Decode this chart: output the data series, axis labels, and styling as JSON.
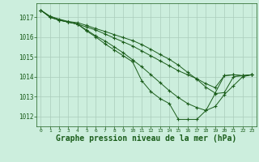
{
  "background_color": "#cceedd",
  "grid_color": "#aaccbb",
  "line_color": "#1a5c1a",
  "marker_color": "#1a5c1a",
  "xlabel": "Graphe pression niveau de la mer (hPa)",
  "xlabel_fontsize": 7,
  "ylim": [
    1011.5,
    1017.7
  ],
  "xlim": [
    -0.5,
    23.5
  ],
  "yticks": [
    1012,
    1013,
    1014,
    1015,
    1016,
    1017
  ],
  "xticks": [
    0,
    1,
    2,
    3,
    4,
    5,
    6,
    7,
    8,
    9,
    10,
    11,
    12,
    13,
    14,
    15,
    16,
    17,
    18,
    19,
    20,
    21,
    22,
    23
  ],
  "lines": [
    [
      1017.35,
      1017.0,
      1016.85,
      1016.75,
      1016.65,
      1016.5,
      1016.35,
      1016.15,
      1015.95,
      1015.75,
      1015.55,
      1015.3,
      1015.05,
      1014.8,
      1014.55,
      1014.3,
      1014.1,
      1013.9,
      1013.65,
      1013.45,
      1014.05,
      1014.1,
      1014.05,
      1014.1
    ],
    [
      1017.35,
      1017.0,
      1016.85,
      1016.75,
      1016.65,
      1016.35,
      1016.05,
      1015.8,
      1015.5,
      1015.2,
      1014.85,
      1014.5,
      1014.1,
      1013.7,
      1013.3,
      1012.95,
      1012.65,
      1012.45,
      1012.3,
      1012.5,
      1013.1,
      1013.55,
      1014.0,
      1014.1
    ],
    [
      1017.35,
      1017.0,
      1016.85,
      1016.75,
      1016.65,
      1016.3,
      1016.0,
      1015.65,
      1015.35,
      1015.05,
      1014.75,
      1013.8,
      1013.25,
      1012.9,
      1012.65,
      1011.85,
      1011.85,
      1011.85,
      1012.3,
      1013.15,
      1013.2,
      1014.0,
      1014.05,
      1014.1
    ],
    [
      1017.35,
      1017.05,
      1016.9,
      1016.78,
      1016.72,
      1016.58,
      1016.42,
      1016.28,
      1016.12,
      1015.97,
      1015.82,
      1015.62,
      1015.38,
      1015.12,
      1014.88,
      1014.58,
      1014.22,
      1013.88,
      1013.47,
      1013.18,
      1014.05,
      1014.1,
      1014.05,
      1014.1
    ]
  ]
}
